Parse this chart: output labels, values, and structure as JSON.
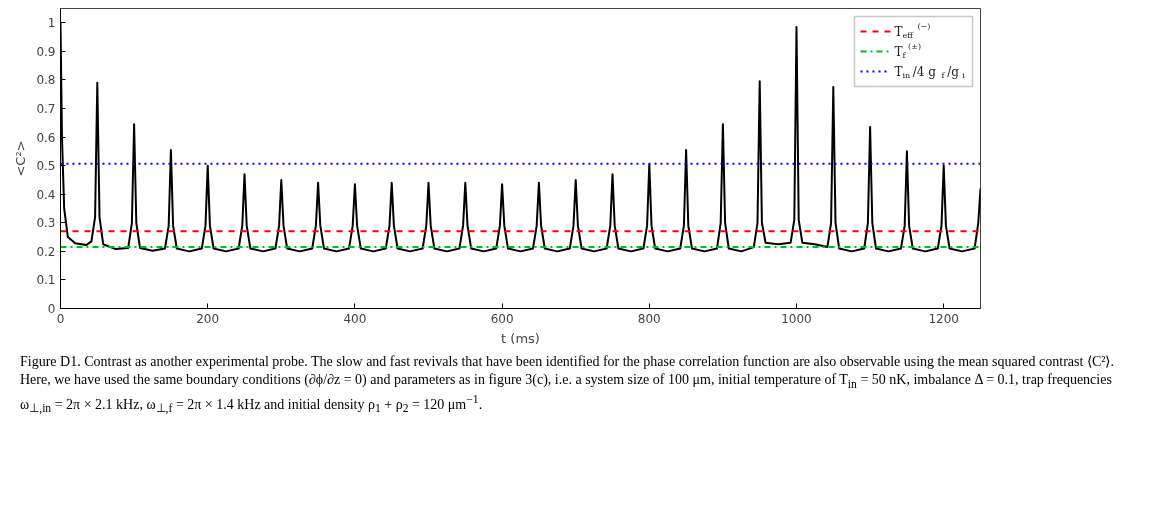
{
  "chart_data": {
    "type": "line",
    "xlabel": "t (ms)",
    "ylabel": "<C²>",
    "xlim": [
      0,
      1250
    ],
    "ylim": [
      0,
      1.05
    ],
    "xticks": [
      0,
      200,
      400,
      600,
      800,
      1000,
      1200
    ],
    "yticks": [
      0,
      0.1,
      0.2,
      0.3,
      0.4,
      0.5,
      0.6,
      0.7,
      0.8,
      0.9,
      1
    ],
    "grid": false,
    "legend": "top right",
    "marker": "none",
    "series": [
      {
        "color": "#000000",
        "line_style": "solid",
        "x": [
          0,
          2,
          5,
          10,
          20,
          35,
          42,
          47,
          50,
          53,
          58,
          75,
          92,
          97,
          100,
          103,
          108,
          125,
          142,
          147,
          150,
          153,
          158,
          175,
          192,
          197,
          200,
          203,
          208,
          225,
          242,
          247,
          250,
          253,
          258,
          275,
          292,
          297,
          300,
          303,
          308,
          325,
          342,
          347,
          350,
          353,
          358,
          375,
          392,
          397,
          400,
          403,
          408,
          425,
          442,
          447,
          450,
          453,
          458,
          475,
          492,
          497,
          500,
          503,
          508,
          525,
          542,
          547,
          550,
          553,
          558,
          575,
          592,
          597,
          600,
          603,
          608,
          625,
          642,
          647,
          650,
          653,
          658,
          675,
          692,
          697,
          700,
          703,
          708,
          725,
          742,
          747,
          750,
          753,
          758,
          775,
          792,
          797,
          800,
          803,
          808,
          825,
          842,
          847,
          850,
          853,
          858,
          875,
          892,
          897,
          900,
          903,
          908,
          925,
          942,
          947,
          950,
          953,
          958,
          975,
          992,
          997,
          1000,
          1003,
          1008,
          1025,
          1042,
          1047,
          1050,
          1053,
          1058,
          1075,
          1092,
          1097,
          1100,
          1103,
          1108,
          1125,
          1142,
          1147,
          1150,
          1153,
          1158,
          1175,
          1192,
          1197,
          1200,
          1203,
          1208,
          1225,
          1242,
          1247,
          1250
        ],
        "values": [
          1.0,
          0.6,
          0.35,
          0.25,
          0.228,
          0.222,
          0.235,
          0.32,
          0.79,
          0.32,
          0.225,
          0.208,
          0.212,
          0.3,
          0.645,
          0.3,
          0.212,
          0.202,
          0.21,
          0.29,
          0.555,
          0.29,
          0.21,
          0.2,
          0.21,
          0.29,
          0.5,
          0.29,
          0.21,
          0.2,
          0.21,
          0.29,
          0.47,
          0.29,
          0.21,
          0.2,
          0.21,
          0.29,
          0.45,
          0.29,
          0.21,
          0.2,
          0.21,
          0.29,
          0.44,
          0.29,
          0.21,
          0.2,
          0.21,
          0.29,
          0.435,
          0.29,
          0.21,
          0.2,
          0.21,
          0.29,
          0.44,
          0.29,
          0.21,
          0.2,
          0.21,
          0.29,
          0.44,
          0.29,
          0.21,
          0.2,
          0.21,
          0.29,
          0.44,
          0.29,
          0.21,
          0.2,
          0.21,
          0.29,
          0.435,
          0.29,
          0.21,
          0.2,
          0.21,
          0.29,
          0.44,
          0.29,
          0.21,
          0.2,
          0.21,
          0.29,
          0.45,
          0.29,
          0.21,
          0.2,
          0.21,
          0.29,
          0.47,
          0.29,
          0.21,
          0.2,
          0.21,
          0.29,
          0.505,
          0.29,
          0.21,
          0.2,
          0.21,
          0.29,
          0.555,
          0.29,
          0.21,
          0.2,
          0.21,
          0.3,
          0.645,
          0.3,
          0.21,
          0.2,
          0.215,
          0.3,
          0.795,
          0.3,
          0.23,
          0.225,
          0.23,
          0.31,
          0.985,
          0.31,
          0.23,
          0.225,
          0.215,
          0.3,
          0.775,
          0.3,
          0.21,
          0.2,
          0.21,
          0.3,
          0.635,
          0.3,
          0.21,
          0.2,
          0.21,
          0.29,
          0.55,
          0.29,
          0.21,
          0.2,
          0.21,
          0.29,
          0.5,
          0.29,
          0.21,
          0.2,
          0.21,
          0.3,
          0.42
        ]
      }
    ],
    "ref_lines": [
      {
        "axis": "y",
        "value": 0.27,
        "label": "T$_{eff}$$^{(−)}$",
        "color": "#ff0000",
        "line_style": "dashed"
      },
      {
        "axis": "y",
        "value": 0.215,
        "label": "T$_{f}$$^{(±)}$",
        "color": "#00c000",
        "line_style": "dashdot"
      },
      {
        "axis": "y",
        "value": 0.507,
        "label": "T$_{in}$/4 g$_{f}$/g$_{i}$",
        "color": "#0000ff",
        "line_style": "dotted"
      }
    ],
    "annotations": [
      "Figure D1. Contrast as another experimental probe. The slow and fast revivals that have been identified for the phase correlation function are also observable using the mean squared contrast ⟨C²⟩. Here, we have used the same boundary conditions (∂ϕ/∂z = 0) and parameters as in figure 3(c), i.e. a system size of 100 μm, initial temperature of T$_{in}$ = 50 nK, imbalance Δ = 0.1, trap frequencies ω$_{⊥,in}$ = 2π × 2.1 kHz, ω$_{⊥,f}$ = 2π × 1.4 kHz and initial density ρ$_{1}$ + ρ$_{2}$ = 120 μm$^{−1}$."
    ]
  }
}
